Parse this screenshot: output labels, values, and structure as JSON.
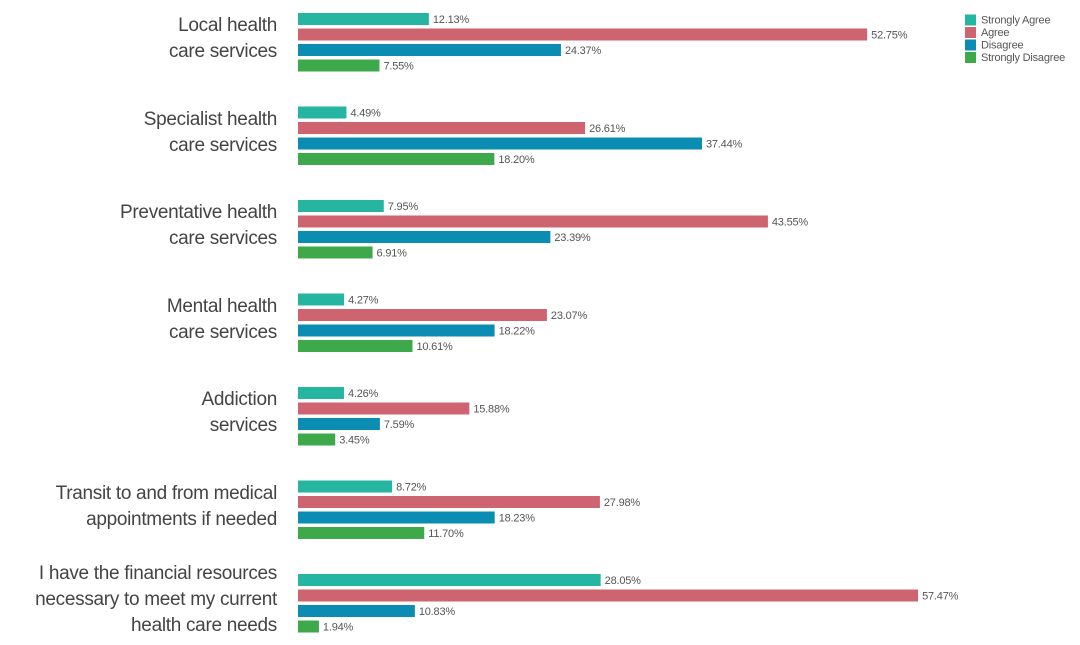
{
  "chart_data": {
    "type": "bar",
    "orientation": "horizontal",
    "categories": [
      "Local health\ncare services",
      "Specialist health\ncare services",
      "Preventative health\ncare services",
      "Mental health\ncare services",
      "Addiction\nservices",
      "Transit to and from medical\nappointments if needed",
      "I have the financial resources\nnecessary to meet my current\nhealth care needs"
    ],
    "series": [
      {
        "name": "Strongly Agree",
        "color": "#26b5a0",
        "values": [
          12.13,
          4.49,
          7.95,
          4.27,
          4.26,
          8.72,
          28.05
        ],
        "value_labels": [
          "12.13%",
          "4.49%",
          "7.95%",
          "4.27%",
          "4.26%",
          "8.72%",
          "28.05%"
        ]
      },
      {
        "name": "Agree",
        "color": "#cd6470",
        "values": [
          52.75,
          26.61,
          43.55,
          23.07,
          15.88,
          27.98,
          57.47
        ],
        "value_labels": [
          "52.75%",
          "26.61%",
          "43.55%",
          "23.07%",
          "15.88%",
          "27.98%",
          "57.47%"
        ]
      },
      {
        "name": "Disagree",
        "color": "#0b8db3",
        "values": [
          24.37,
          37.44,
          23.39,
          18.22,
          7.59,
          18.23,
          10.83
        ],
        "value_labels": [
          "24.37%",
          "37.44%",
          "23.39%",
          "18.22%",
          "7.59%",
          "18.23%",
          "10.83%"
        ]
      },
      {
        "name": "Strongly Disagree",
        "color": "#3da94a",
        "values": [
          7.55,
          18.2,
          6.91,
          10.61,
          3.45,
          11.7,
          1.94
        ],
        "value_labels": [
          "7.55%",
          "18.20%",
          "6.91%",
          "10.61%",
          "3.45%",
          "11.70%",
          "1.94%"
        ]
      }
    ],
    "legend": "top-right"
  }
}
